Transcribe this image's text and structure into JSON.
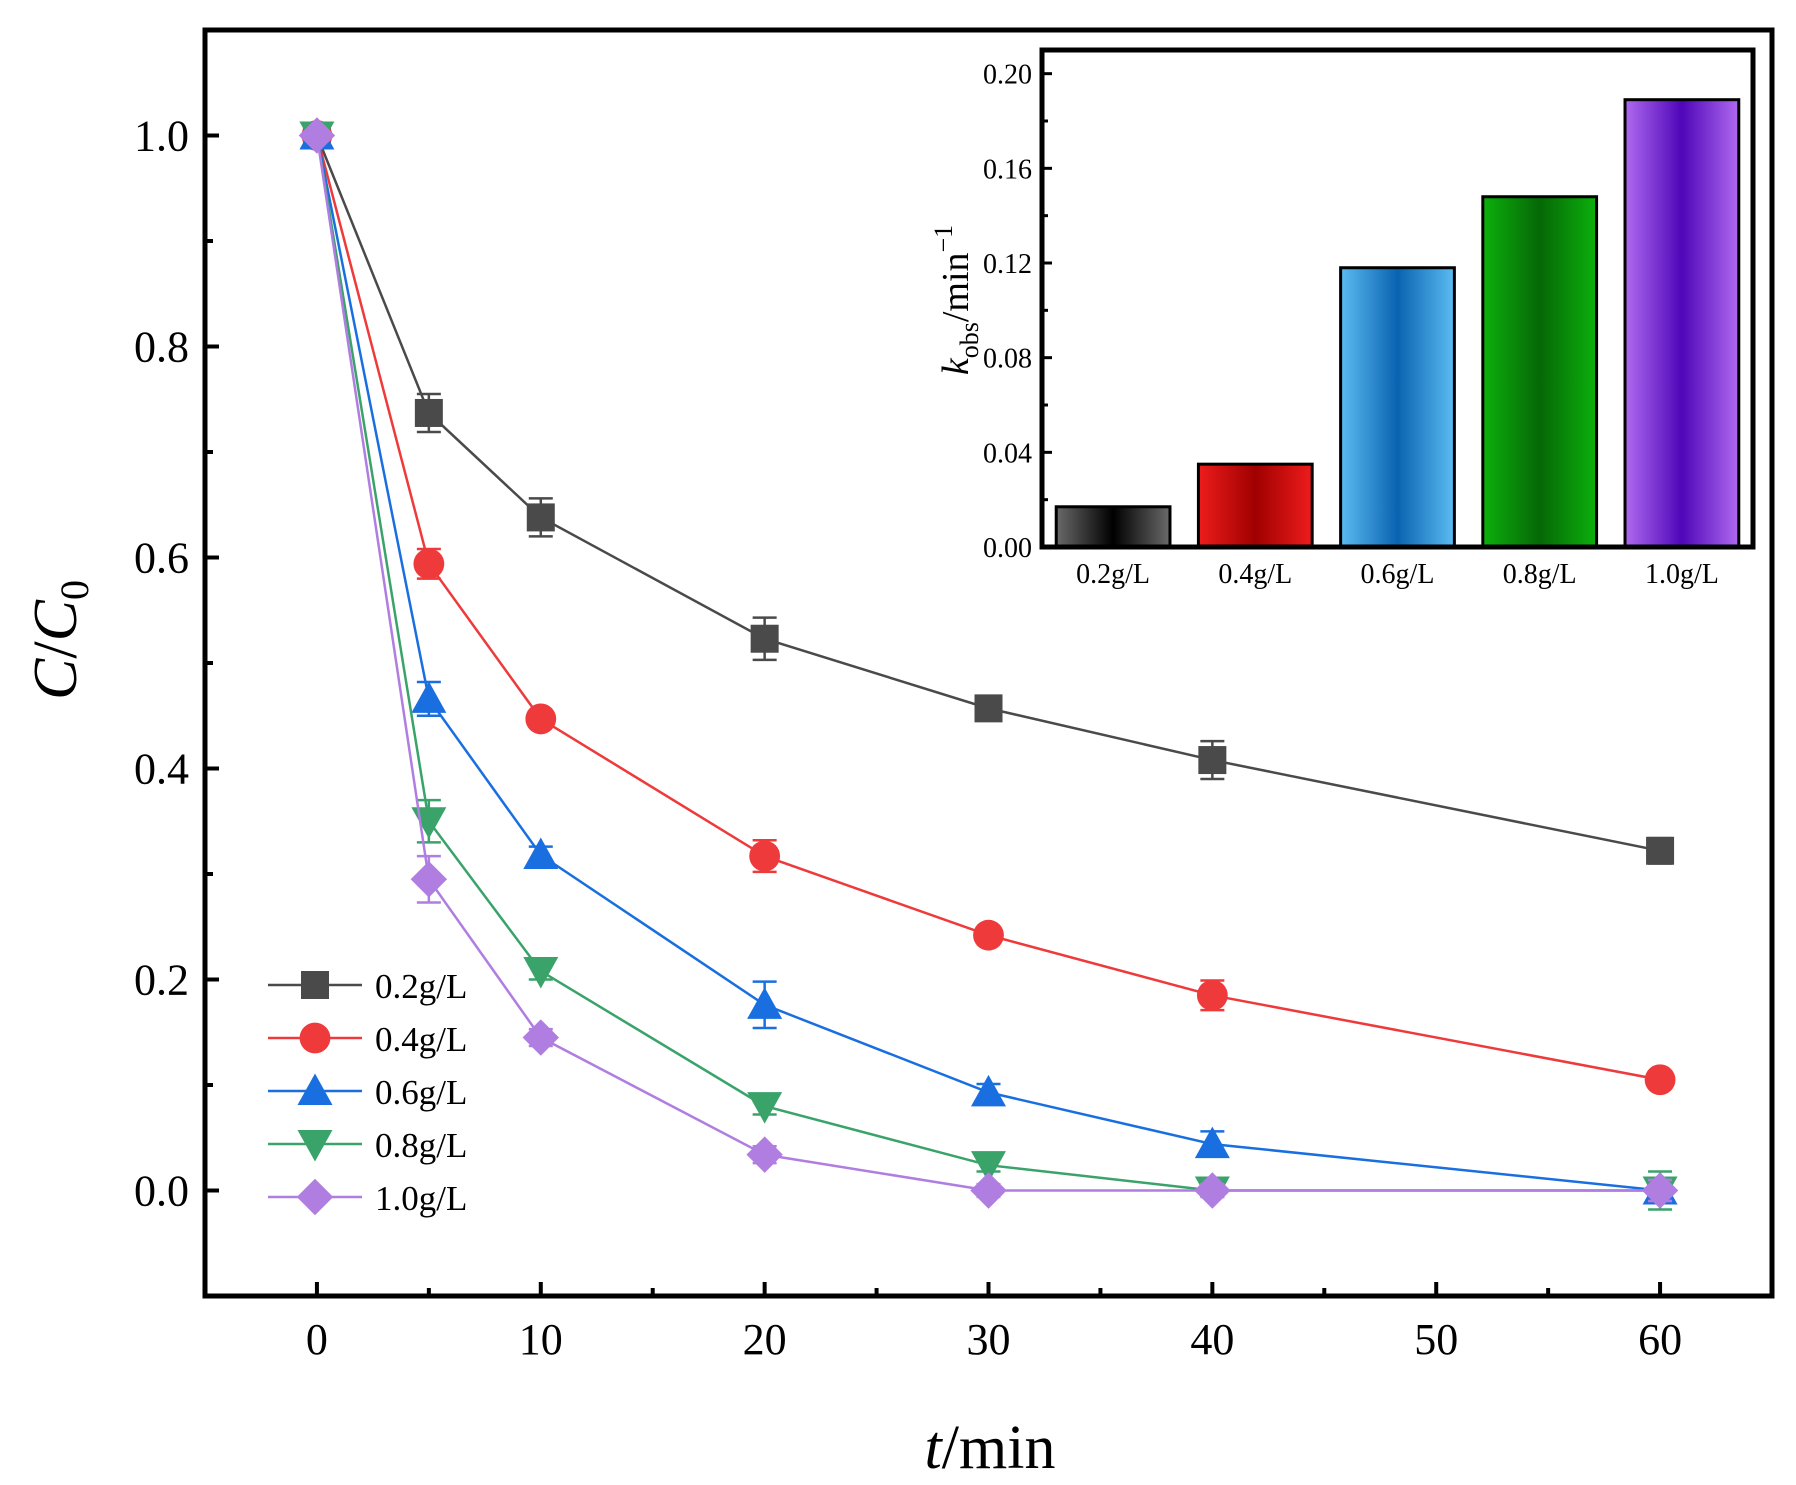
{
  "chart_data": [
    {
      "type": "line",
      "xlabel": "t/min",
      "xlabel_italic": "t",
      "xlabel_rest": "/min",
      "ylabel": "C/C0",
      "ylabel_c": "C",
      "ylabel_slash": "/",
      "ylabel_c0": "C",
      "ylabel_sub": "0",
      "xlim": [
        -5,
        65
      ],
      "ylim": [
        -0.1,
        1.1
      ],
      "xticks": [
        0,
        10,
        20,
        30,
        40,
        50,
        60
      ],
      "xtick_labels": [
        "0",
        "10",
        "20",
        "30",
        "40",
        "50",
        "60"
      ],
      "yticks": [
        0.0,
        0.2,
        0.4,
        0.6,
        0.8,
        1.0
      ],
      "ytick_labels": [
        "0.0",
        "0.2",
        "0.4",
        "0.6",
        "0.8",
        "1.0"
      ],
      "legend_position": "bottom-left",
      "grid": false,
      "x": [
        0,
        5,
        10,
        20,
        30,
        40,
        60
      ],
      "series": [
        {
          "name": "0.2g/L",
          "color": "#4a4a4a",
          "marker": "square",
          "values": [
            1.0,
            0.737,
            0.638,
            0.523,
            0.457,
            0.408,
            0.322
          ],
          "errors": [
            0.005,
            0.018,
            0.018,
            0.02,
            0.008,
            0.018,
            0.012
          ]
        },
        {
          "name": "0.4g/L",
          "color": "#ee3a3a",
          "marker": "circle",
          "values": [
            1.0,
            0.594,
            0.447,
            0.317,
            0.242,
            0.185,
            0.105
          ],
          "errors": [
            0.005,
            0.014,
            0.006,
            0.015,
            0.006,
            0.014,
            0.008
          ]
        },
        {
          "name": "0.6g/L",
          "color": "#1a6fe0",
          "marker": "triangle-up",
          "values": [
            1.0,
            0.466,
            0.318,
            0.176,
            0.093,
            0.044,
            0.0
          ],
          "errors": [
            0.005,
            0.016,
            0.008,
            0.022,
            0.008,
            0.012,
            0.01
          ]
        },
        {
          "name": "0.8g/L",
          "color": "#3aa36a",
          "marker": "triangle-down",
          "values": [
            1.0,
            0.35,
            0.208,
            0.08,
            0.024,
            0.0,
            0.0
          ],
          "errors": [
            0.005,
            0.02,
            0.008,
            0.008,
            0.006,
            0.006,
            0.018
          ]
        },
        {
          "name": "1.0g/L",
          "color": "#b07de0",
          "marker": "diamond",
          "values": [
            1.0,
            0.295,
            0.145,
            0.034,
            0.0,
            0.0,
            0.0
          ],
          "errors": [
            0.005,
            0.022,
            0.008,
            0.008,
            0.006,
            0.006,
            0.01
          ]
        }
      ]
    },
    {
      "type": "bar",
      "ylabel": "kobs/min−1",
      "ylabel_k": "k",
      "ylabel_sub": "obs",
      "ylabel_unit": "/min",
      "ylabel_sup": "−1",
      "ylim": [
        0.0,
        0.21
      ],
      "yticks": [
        0.0,
        0.04,
        0.08,
        0.12,
        0.16,
        0.2
      ],
      "ytick_labels": [
        "0.00",
        "0.04",
        "0.08",
        "0.12",
        "0.16",
        "0.20"
      ],
      "categories": [
        "0.2g/L",
        "0.4g/L",
        "0.6g/L",
        "0.8g/L",
        "1.0g/L"
      ],
      "values": [
        0.017,
        0.035,
        0.118,
        0.148,
        0.189
      ],
      "bar_colors": [
        {
          "edge": "#6a6a6a",
          "mid": "#000000"
        },
        {
          "edge": "#ee1c1c",
          "mid": "#a00000"
        },
        {
          "edge": "#5cbcf2",
          "mid": "#0a63b0"
        },
        {
          "edge": "#0cb00c",
          "mid": "#066806"
        },
        {
          "edge": "#b06af0",
          "mid": "#4e06b8"
        }
      ]
    }
  ]
}
